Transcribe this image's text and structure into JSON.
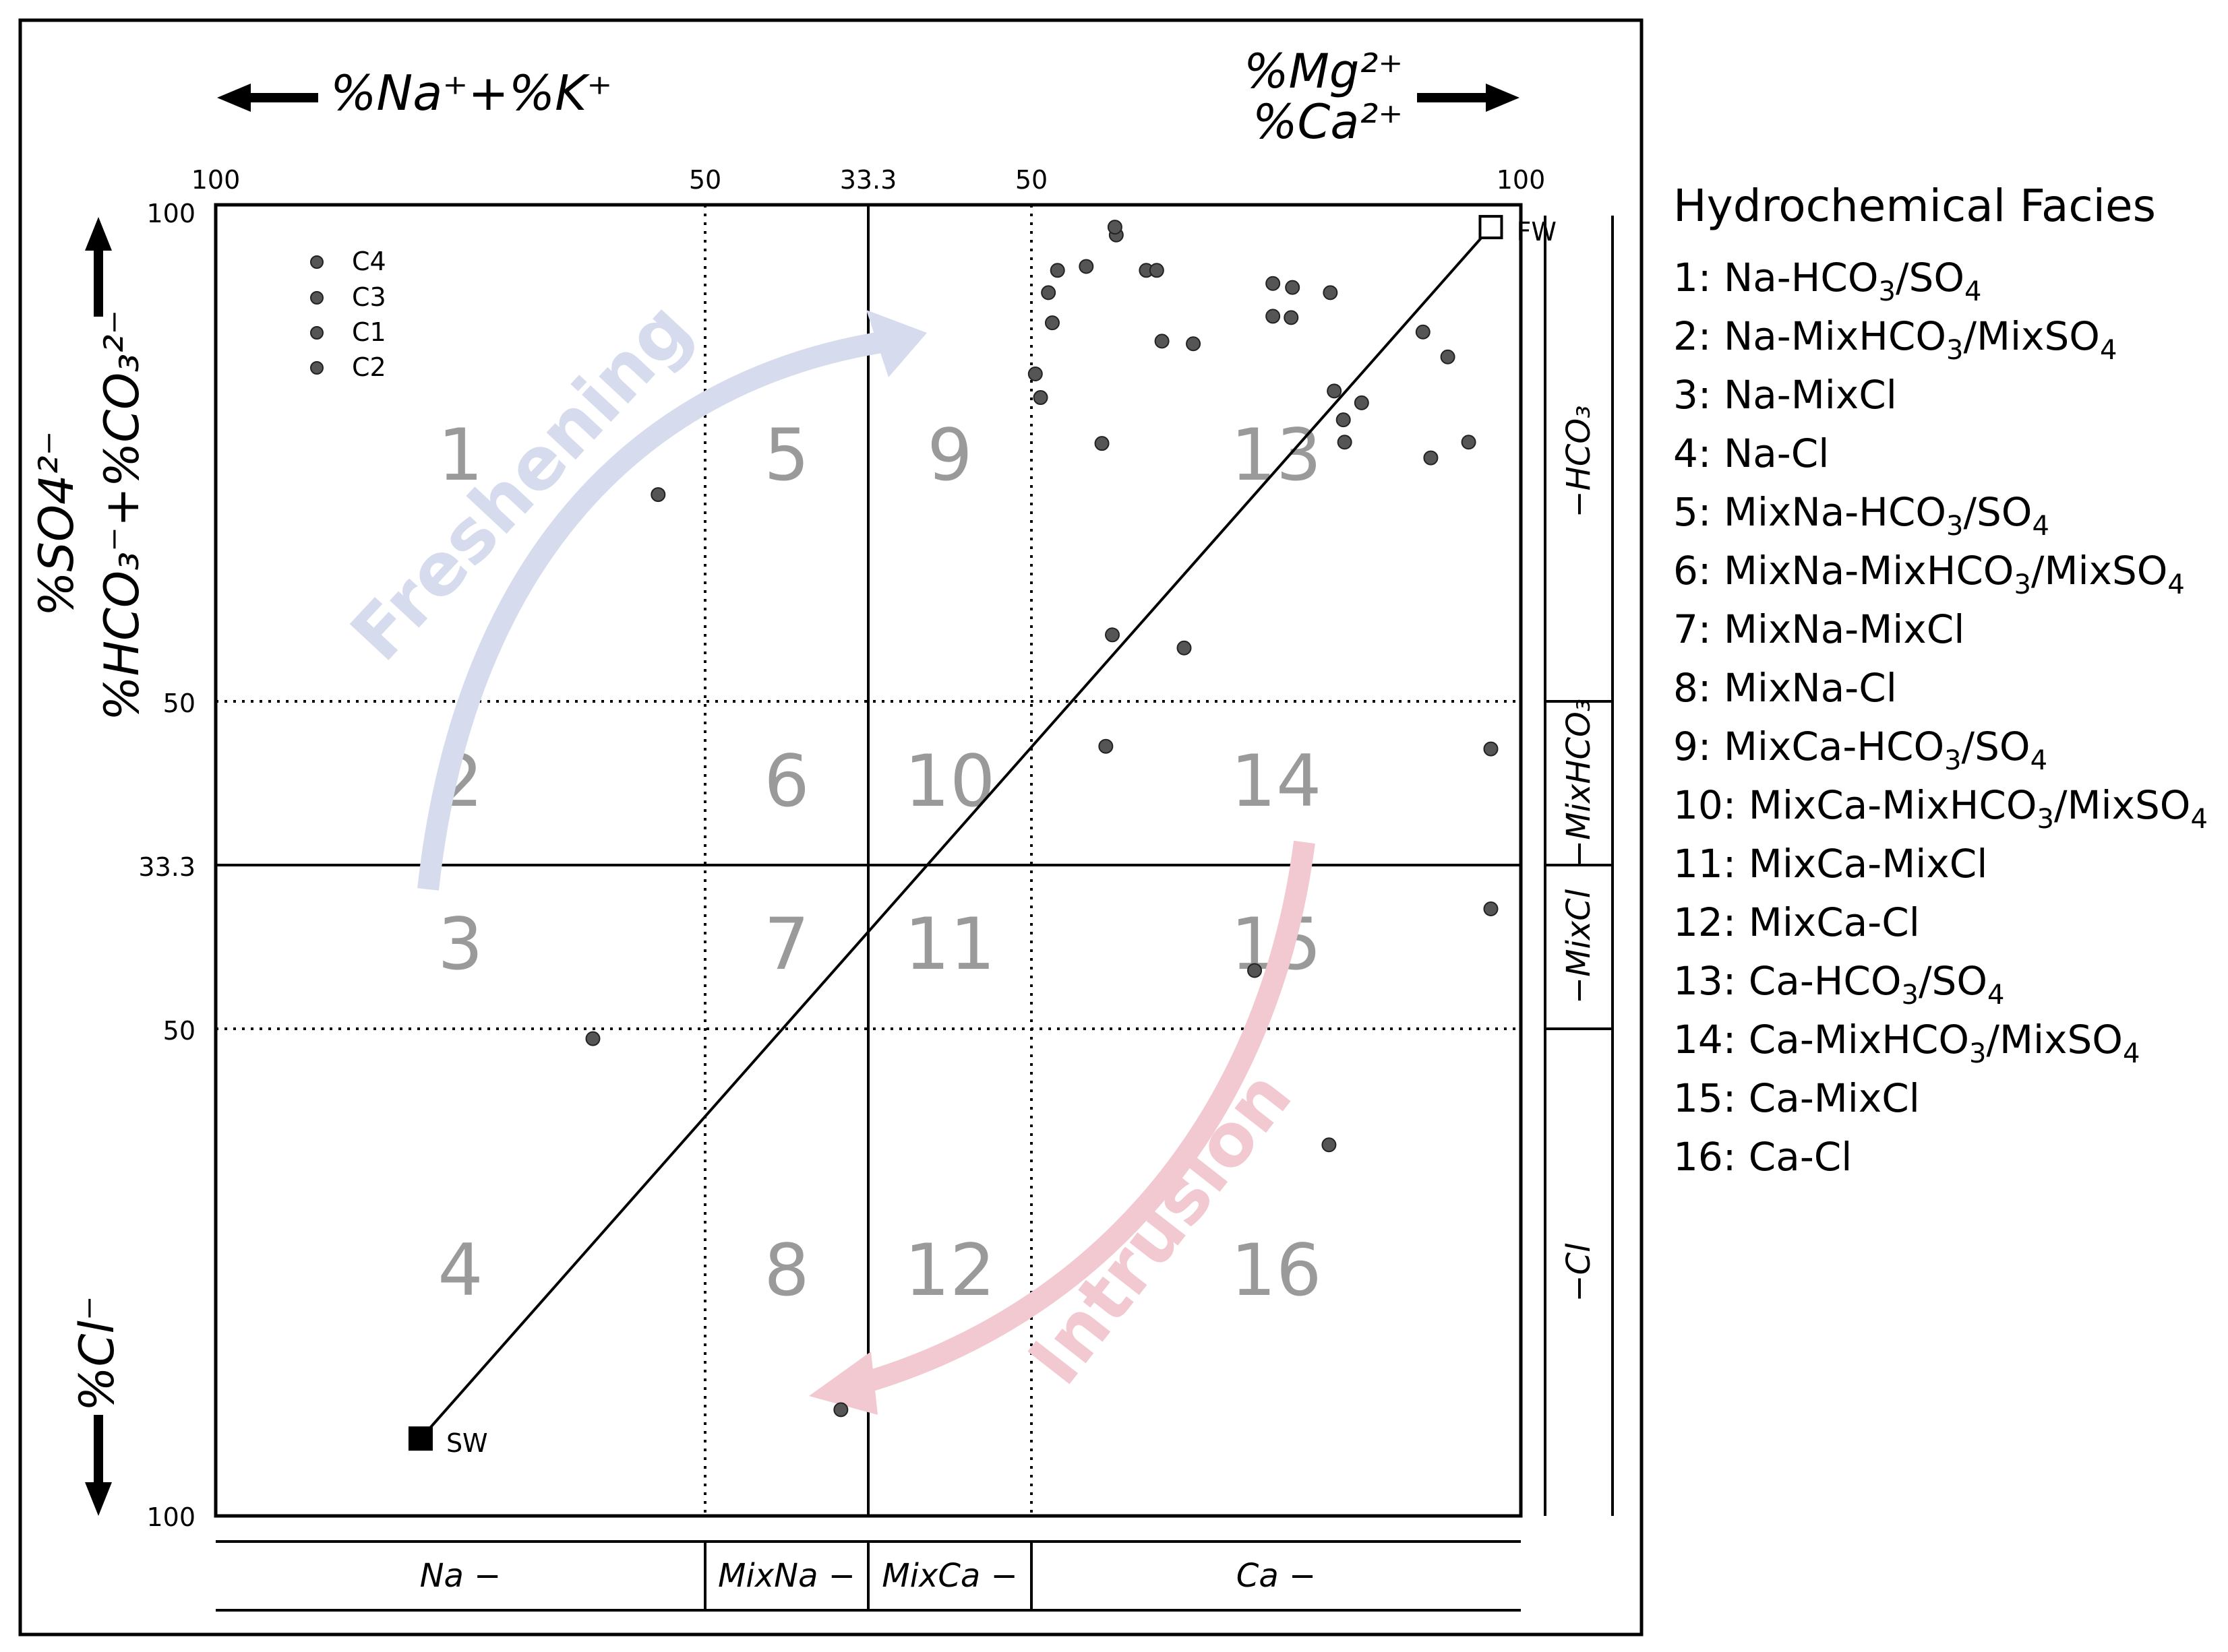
{
  "chart_data": {
    "type": "scatter",
    "subtype": "hydrochemical facies evolution (HFE) diagram",
    "axes": {
      "x_label_left": "%Na⁺+%K⁺",
      "x_label_right_top": "%Mg²⁺",
      "x_label_right_bottom": "%Ca²⁺",
      "y_label_top_a": "%SO4²⁻",
      "y_label_top_b": "%HCO₃⁻+%CO₃²⁻",
      "y_label_bottom": "%Cl⁻",
      "x_range": [
        0,
        100
      ],
      "y_range": [
        0,
        100
      ],
      "x_tick_labels": [
        "100",
        "50",
        "33.3",
        "50",
        "100"
      ],
      "y_tick_labels": [
        "100",
        "50",
        "33.3",
        "50",
        "100"
      ]
    },
    "grid": "dividers at 37.5, 50 (solid) and 62.5 percent of each axis",
    "legend_entries": [
      "C4",
      "C3",
      "C1",
      "C2"
    ],
    "legend_position": "top-left",
    "facies_numbers": [
      "1",
      "5",
      "9",
      "13",
      "2",
      "6",
      "10",
      "14",
      "3",
      "7",
      "11",
      "15",
      "4",
      "8",
      "12",
      "16"
    ],
    "reference_line": {
      "from": {
        "label": "SW",
        "x": 15.7,
        "y": 5.9
      },
      "to": {
        "label": "FW",
        "x": 97.7,
        "y": 98.3
      }
    },
    "annotations": [
      {
        "text": "Freshening",
        "color": "#d6dcee"
      },
      {
        "text": "Intrusion",
        "color": "#f2c8d1"
      }
    ],
    "x_strip_labels": [
      "Na −",
      "MixNa −",
      "MixCa −",
      "Ca −"
    ],
    "y_strip_labels": [
      "−HCO₃",
      "−MixHCO₃",
      "−MixCl",
      "−Cl"
    ],
    "points": [
      {
        "x": 69.0,
        "y": 97.7
      },
      {
        "x": 68.9,
        "y": 98.3
      },
      {
        "x": 66.7,
        "y": 95.3
      },
      {
        "x": 64.5,
        "y": 95.0
      },
      {
        "x": 71.3,
        "y": 95.0
      },
      {
        "x": 72.1,
        "y": 95.0
      },
      {
        "x": 63.8,
        "y": 93.3
      },
      {
        "x": 64.1,
        "y": 91.0
      },
      {
        "x": 81.0,
        "y": 94.0
      },
      {
        "x": 82.5,
        "y": 93.7
      },
      {
        "x": 85.4,
        "y": 93.3
      },
      {
        "x": 81.0,
        "y": 91.5
      },
      {
        "x": 82.4,
        "y": 91.4
      },
      {
        "x": 72.5,
        "y": 89.6
      },
      {
        "x": 74.9,
        "y": 89.4
      },
      {
        "x": 92.5,
        "y": 90.3
      },
      {
        "x": 94.4,
        "y": 88.4
      },
      {
        "x": 62.8,
        "y": 87.1
      },
      {
        "x": 63.2,
        "y": 85.3
      },
      {
        "x": 85.7,
        "y": 85.8
      },
      {
        "x": 87.8,
        "y": 84.9
      },
      {
        "x": 86.4,
        "y": 83.6
      },
      {
        "x": 86.5,
        "y": 81.9
      },
      {
        "x": 67.9,
        "y": 81.8
      },
      {
        "x": 93.1,
        "y": 80.7
      },
      {
        "x": 96.0,
        "y": 81.9
      },
      {
        "x": 33.9,
        "y": 77.9
      },
      {
        "x": 68.7,
        "y": 67.2
      },
      {
        "x": 74.2,
        "y": 66.2
      },
      {
        "x": 68.2,
        "y": 58.7
      },
      {
        "x": 97.7,
        "y": 58.5
      },
      {
        "x": 97.7,
        "y": 46.3
      },
      {
        "x": 79.6,
        "y": 41.6
      },
      {
        "x": 28.9,
        "y": 36.4
      },
      {
        "x": 85.3,
        "y": 28.3
      },
      {
        "x": 47.9,
        "y": 8.1
      }
    ]
  },
  "facies_legend": {
    "title": "Hydrochemical Facies",
    "items": [
      {
        "num": "1: ",
        "cat": "Na",
        "ani": [
          {
            "t": "HCO"
          },
          {
            "t": "3",
            "sub": true
          },
          {
            "t": "/SO"
          },
          {
            "t": "4",
            "sub": true
          }
        ]
      },
      {
        "num": "2: ",
        "cat": "Na",
        "ani": [
          {
            "t": "MixHCO"
          },
          {
            "t": "3",
            "sub": true
          },
          {
            "t": "/MixSO"
          },
          {
            "t": "4",
            "sub": true
          }
        ]
      },
      {
        "num": "3: ",
        "cat": "Na",
        "ani": [
          {
            "t": "MixCl"
          }
        ]
      },
      {
        "num": "4: ",
        "cat": "Na",
        "ani": [
          {
            "t": "Cl"
          }
        ]
      },
      {
        "num": "5: ",
        "cat": "MixNa",
        "ani": [
          {
            "t": "HCO"
          },
          {
            "t": "3",
            "sub": true
          },
          {
            "t": "/SO"
          },
          {
            "t": "4",
            "sub": true
          }
        ]
      },
      {
        "num": "6: ",
        "cat": "MixNa",
        "ani": [
          {
            "t": "MixHCO"
          },
          {
            "t": "3",
            "sub": true
          },
          {
            "t": "/MixSO"
          },
          {
            "t": "4",
            "sub": true
          }
        ]
      },
      {
        "num": "7: ",
        "cat": "MixNa",
        "ani": [
          {
            "t": "MixCl"
          }
        ]
      },
      {
        "num": "8: ",
        "cat": "MixNa",
        "ani": [
          {
            "t": "Cl"
          }
        ]
      },
      {
        "num": "9: ",
        "cat": "MixCa",
        "ani": [
          {
            "t": "HCO"
          },
          {
            "t": "3",
            "sub": true
          },
          {
            "t": "/SO"
          },
          {
            "t": "4",
            "sub": true
          }
        ]
      },
      {
        "num": "10: ",
        "cat": "MixCa",
        "ani": [
          {
            "t": "MixHCO"
          },
          {
            "t": "3",
            "sub": true
          },
          {
            "t": "/MixSO"
          },
          {
            "t": "4",
            "sub": true
          }
        ]
      },
      {
        "num": "11: ",
        "cat": "MixCa",
        "ani": [
          {
            "t": "MixCl"
          }
        ]
      },
      {
        "num": "12: ",
        "cat": "MixCa",
        "ani": [
          {
            "t": "Cl"
          }
        ]
      },
      {
        "num": "13: ",
        "cat": "Ca",
        "ani": [
          {
            "t": "HCO"
          },
          {
            "t": "3",
            "sub": true
          },
          {
            "t": "/SO"
          },
          {
            "t": "4",
            "sub": true
          }
        ]
      },
      {
        "num": "14: ",
        "cat": "Ca",
        "ani": [
          {
            "t": "MixHCO"
          },
          {
            "t": "3",
            "sub": true
          },
          {
            "t": "/MixSO"
          },
          {
            "t": "4",
            "sub": true
          }
        ]
      },
      {
        "num": "15: ",
        "cat": "Ca",
        "ani": [
          {
            "t": "MixCl"
          }
        ]
      },
      {
        "num": "16: ",
        "cat": "Ca",
        "ani": [
          {
            "t": "Cl"
          }
        ]
      }
    ]
  }
}
